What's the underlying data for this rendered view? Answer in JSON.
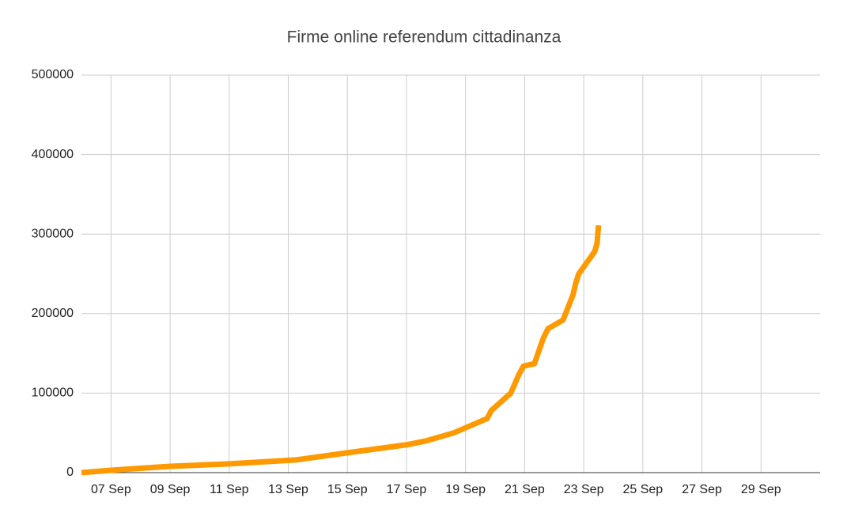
{
  "chart_data": {
    "type": "line",
    "title": "Firme online referendum cittadinanza",
    "x": [
      6,
      7,
      9,
      11,
      13.27,
      15,
      17,
      17.67,
      18.6,
      19.73,
      19.87,
      20.53,
      20.8,
      20.96,
      21.33,
      21.63,
      21.79,
      22.3,
      22.64,
      22.72,
      22.83,
      23.37,
      23.45,
      23.5
    ],
    "values": [
      0,
      3000,
      8000,
      11000,
      16000,
      25000,
      35000,
      40000,
      50000,
      68000,
      78000,
      100000,
      123000,
      134000,
      137000,
      169000,
      181000,
      192000,
      224000,
      237000,
      250000,
      278000,
      288000,
      311000
    ],
    "color": "#ff9900",
    "xlim": [
      6,
      31
    ],
    "xticks": [
      {
        "value": 7,
        "label": "07 Sep"
      },
      {
        "value": 9,
        "label": "09 Sep"
      },
      {
        "value": 11,
        "label": "11 Sep"
      },
      {
        "value": 13,
        "label": "13 Sep"
      },
      {
        "value": 15,
        "label": "15 Sep"
      },
      {
        "value": 17,
        "label": "17 Sep"
      },
      {
        "value": 19,
        "label": "19 Sep"
      },
      {
        "value": 21,
        "label": "21 Sep"
      },
      {
        "value": 23,
        "label": "23 Sep"
      },
      {
        "value": 25,
        "label": "25 Sep"
      },
      {
        "value": 27,
        "label": "27 Sep"
      },
      {
        "value": 29,
        "label": "29 Sep"
      }
    ],
    "ylim": [
      0,
      500000
    ],
    "yticks": [
      0,
      100000,
      200000,
      300000,
      400000,
      500000
    ],
    "grid": true
  }
}
